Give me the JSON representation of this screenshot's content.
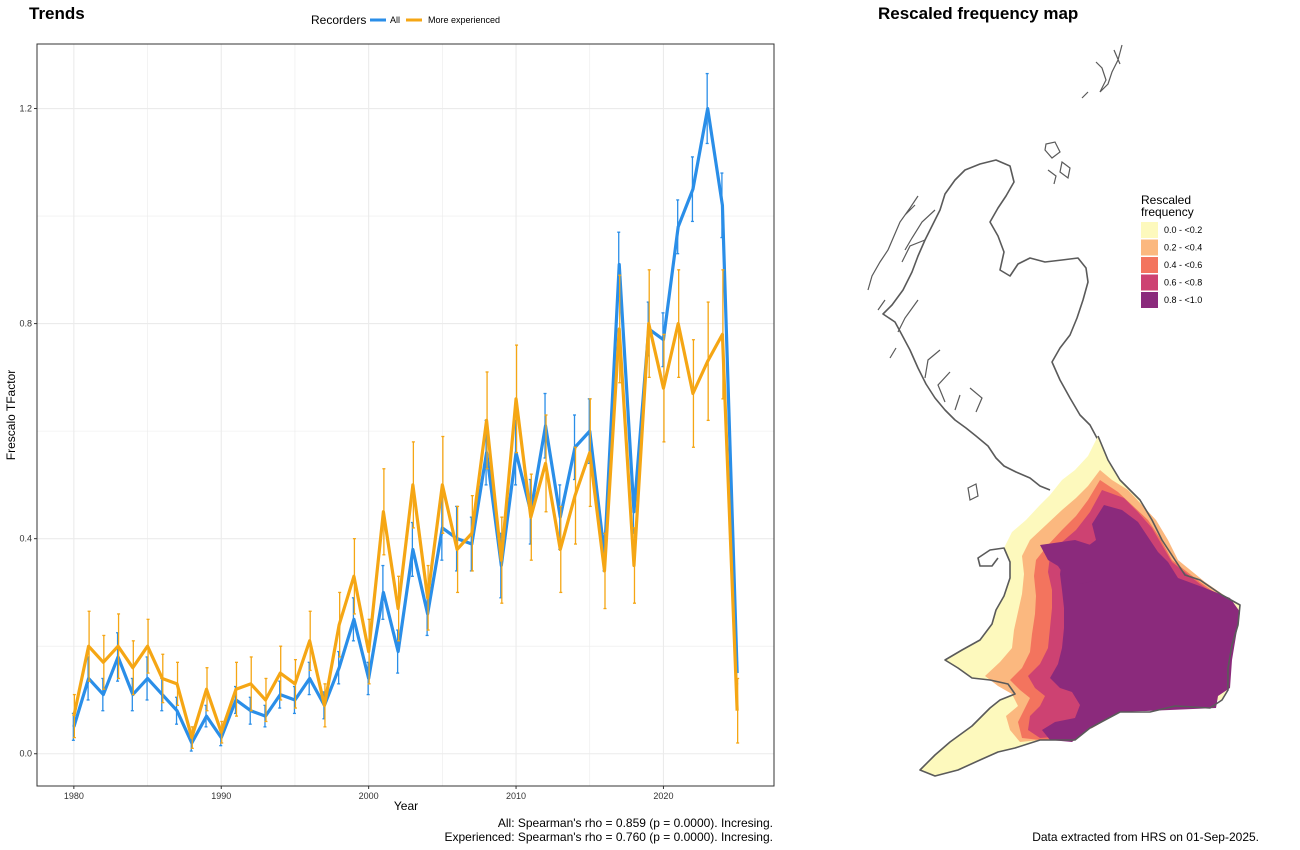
{
  "chart_data": [
    {
      "type": "line",
      "title": "Trends",
      "xlabel": "Year",
      "ylabel": "Frescalo TFactor",
      "xlim": [
        1977.5,
        2027.5
      ],
      "ylim": [
        -0.06,
        1.32
      ],
      "x_ticks": [
        1980,
        1990,
        2000,
        2010,
        2020
      ],
      "y_ticks": [
        0.0,
        0.4,
        0.8,
        1.2
      ],
      "y_tick_labels": [
        "0.0",
        "0.4",
        "0.8",
        "1.2"
      ],
      "grid": true,
      "legend": {
        "title": "Recorders",
        "position": "top"
      },
      "x": [
        1980,
        1981,
        1982,
        1983,
        1984,
        1985,
        1986,
        1987,
        1988,
        1989,
        1990,
        1991,
        1992,
        1993,
        1994,
        1995,
        1996,
        1997,
        1998,
        1999,
        2000,
        2001,
        2002,
        2003,
        2004,
        2005,
        2006,
        2007,
        2008,
        2009,
        2010,
        2011,
        2012,
        2013,
        2014,
        2015,
        2016,
        2017,
        2018,
        2019,
        2020,
        2021,
        2022,
        2023,
        2024,
        2025
      ],
      "series": [
        {
          "name": "All",
          "color": "#2a8ee8",
          "values": [
            0.05,
            0.14,
            0.11,
            0.18,
            0.11,
            0.14,
            0.11,
            0.08,
            0.02,
            0.07,
            0.03,
            0.1,
            0.08,
            0.07,
            0.11,
            0.1,
            0.14,
            0.09,
            0.16,
            0.25,
            0.14,
            0.3,
            0.19,
            0.38,
            0.26,
            0.42,
            0.4,
            0.39,
            0.56,
            0.35,
            0.56,
            0.45,
            0.61,
            0.44,
            0.57,
            0.6,
            0.37,
            0.91,
            0.45,
            0.79,
            0.77,
            0.98,
            1.05,
            1.2,
            1.02,
            0.15
          ],
          "err": [
            0.025,
            0.04,
            0.03,
            0.045,
            0.03,
            0.04,
            0.03,
            0.025,
            0.015,
            0.02,
            0.015,
            0.025,
            0.025,
            0.02,
            0.025,
            0.025,
            0.03,
            0.025,
            0.03,
            0.04,
            0.03,
            0.05,
            0.04,
            0.05,
            0.04,
            0.06,
            0.06,
            0.05,
            0.06,
            0.06,
            0.06,
            0.06,
            0.06,
            0.06,
            0.06,
            0.06,
            0.03,
            0.06,
            0.04,
            0.05,
            0.05,
            0.05,
            0.06,
            0.065,
            0.06,
            0.02
          ]
        },
        {
          "name": "More experienced",
          "color": "#f5a614",
          "values": [
            0.07,
            0.2,
            0.17,
            0.2,
            0.16,
            0.2,
            0.14,
            0.13,
            0.03,
            0.12,
            0.04,
            0.12,
            0.13,
            0.1,
            0.15,
            0.13,
            0.21,
            0.09,
            0.24,
            0.33,
            0.19,
            0.45,
            0.27,
            0.5,
            0.29,
            0.5,
            0.38,
            0.41,
            0.62,
            0.36,
            0.66,
            0.44,
            0.54,
            0.38,
            0.48,
            0.56,
            0.34,
            0.79,
            0.35,
            0.8,
            0.68,
            0.8,
            0.67,
            0.73,
            0.78,
            0.08
          ],
          "err": [
            0.04,
            0.065,
            0.05,
            0.06,
            0.05,
            0.05,
            0.045,
            0.04,
            0.02,
            0.04,
            0.02,
            0.05,
            0.05,
            0.04,
            0.05,
            0.045,
            0.055,
            0.04,
            0.06,
            0.07,
            0.06,
            0.08,
            0.06,
            0.08,
            0.06,
            0.09,
            0.08,
            0.07,
            0.09,
            0.08,
            0.1,
            0.08,
            0.09,
            0.08,
            0.09,
            0.1,
            0.07,
            0.1,
            0.07,
            0.1,
            0.1,
            0.1,
            0.1,
            0.11,
            0.12,
            0.06
          ]
        }
      ]
    },
    {
      "type": "heatmap",
      "title": "Rescaled frequency map",
      "legend": {
        "title": [
          "Rescaled",
          "frequency"
        ],
        "position": "right",
        "entries": [
          {
            "label": "0.0 - <0.2",
            "color": "#fdf9bd"
          },
          {
            "label": "0.2 - <0.4",
            "color": "#fbb87f"
          },
          {
            "label": "0.4 - <0.6",
            "color": "#f3745e"
          },
          {
            "label": "0.6 - <0.8",
            "color": "#cd4272"
          },
          {
            "label": "0.8 - <1.0",
            "color": "#8b2a7c"
          }
        ]
      }
    }
  ],
  "captions": {
    "stat_all": "All: Spearman's rho = 0.859 (p = 0.0000). Incresing.",
    "stat_experienced": "Experienced: Spearman's rho = 0.760 (p = 0.0000). Incresing.",
    "data_source": "Data extracted from HRS on 01-Sep-2025."
  },
  "colors": {
    "grid": "#ebebeb",
    "panel_border": "#333333",
    "map_outline": "#5a5a5a"
  }
}
